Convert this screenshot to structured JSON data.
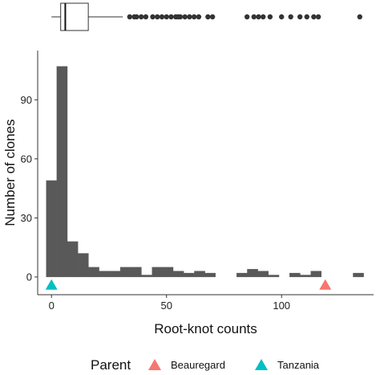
{
  "chart_data": {
    "type": "bar",
    "subtype": "histogram",
    "xlabel": "Root-knot counts",
    "ylabel": "Number of clones",
    "xlim": [
      -6,
      140
    ],
    "ylim": [
      -9,
      115
    ],
    "x_ticks": [
      0,
      50,
      100
    ],
    "y_ticks": [
      0,
      30,
      60,
      90
    ],
    "grid": false,
    "bar_color": "#595959",
    "bin_width": 4.6,
    "bins": [
      {
        "start": -2.3,
        "end": 2.3,
        "count": 49
      },
      {
        "start": 2.3,
        "end": 6.9,
        "count": 107
      },
      {
        "start": 6.9,
        "end": 11.5,
        "count": 18
      },
      {
        "start": 11.5,
        "end": 16.1,
        "count": 12
      },
      {
        "start": 16.1,
        "end": 20.7,
        "count": 5
      },
      {
        "start": 20.7,
        "end": 25.3,
        "count": 3
      },
      {
        "start": 25.3,
        "end": 29.9,
        "count": 3
      },
      {
        "start": 29.9,
        "end": 34.5,
        "count": 5
      },
      {
        "start": 34.5,
        "end": 39.1,
        "count": 5
      },
      {
        "start": 39.1,
        "end": 43.7,
        "count": 1
      },
      {
        "start": 43.7,
        "end": 48.3,
        "count": 5
      },
      {
        "start": 48.3,
        "end": 52.9,
        "count": 5
      },
      {
        "start": 52.9,
        "end": 57.5,
        "count": 3
      },
      {
        "start": 57.5,
        "end": 62.1,
        "count": 2
      },
      {
        "start": 62.1,
        "end": 66.7,
        "count": 3
      },
      {
        "start": 66.7,
        "end": 71.3,
        "count": 2
      },
      {
        "start": 71.3,
        "end": 75.9,
        "count": 0
      },
      {
        "start": 75.9,
        "end": 80.5,
        "count": 0
      },
      {
        "start": 80.5,
        "end": 85.1,
        "count": 2
      },
      {
        "start": 85.1,
        "end": 89.7,
        "count": 4
      },
      {
        "start": 89.7,
        "end": 94.3,
        "count": 3
      },
      {
        "start": 94.3,
        "end": 98.9,
        "count": 1
      },
      {
        "start": 98.9,
        "end": 103.5,
        "count": 0
      },
      {
        "start": 103.5,
        "end": 108.1,
        "count": 2
      },
      {
        "start": 108.1,
        "end": 112.7,
        "count": 1
      },
      {
        "start": 112.7,
        "end": 117.3,
        "count": 3
      },
      {
        "start": 117.3,
        "end": 121.9,
        "count": 0
      },
      {
        "start": 121.9,
        "end": 126.5,
        "count": 0
      },
      {
        "start": 126.5,
        "end": 131.1,
        "count": 0
      },
      {
        "start": 131.1,
        "end": 135.7,
        "count": 2
      }
    ],
    "boxplot": {
      "whisker_low": 0,
      "q1": 4,
      "median": 6,
      "q3": 16,
      "whisker_high": 31,
      "outliers": [
        34,
        36,
        37,
        39,
        41,
        44,
        46,
        48,
        50,
        52,
        54,
        55,
        56,
        58,
        60,
        62,
        64,
        68,
        70,
        85,
        88,
        90,
        92,
        95,
        100,
        104,
        108,
        111,
        114,
        116,
        134
      ]
    },
    "parents": [
      {
        "name": "Beauregard",
        "x": 119,
        "color": "#F8766D"
      },
      {
        "name": "Tanzania",
        "x": 0,
        "color": "#00BFC4"
      }
    ],
    "legend": {
      "title": "Parent",
      "placement": "bottom",
      "entries": [
        "Beauregard",
        "Tanzania"
      ]
    }
  }
}
